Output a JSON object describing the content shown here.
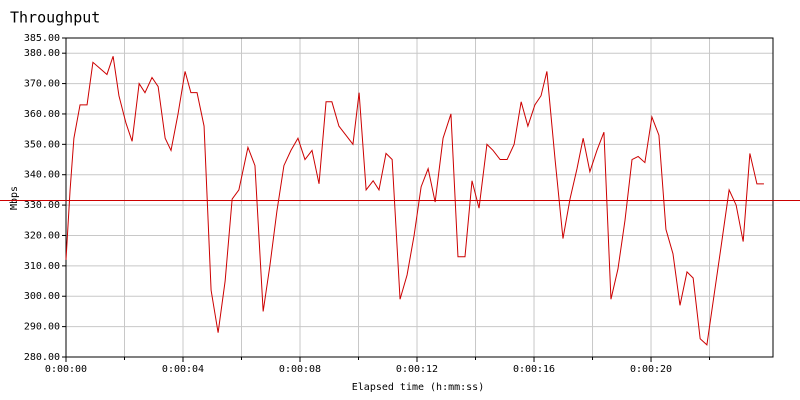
{
  "chart_data": {
    "type": "line",
    "title": "Throughput",
    "xlabel": "Elapsed time (h:mm:ss)",
    "ylabel": "Mbps",
    "x": [
      0,
      0.14,
      0.27,
      0.48,
      0.72,
      0.92,
      1.16,
      1.4,
      1.61,
      1.81,
      2.05,
      2.26,
      2.5,
      2.7,
      2.94,
      3.15,
      3.39,
      3.59,
      3.83,
      4.07,
      4.27,
      4.48,
      4.72,
      4.96,
      5.2,
      5.44,
      5.68,
      5.91,
      6.22,
      6.46,
      6.74,
      6.97,
      7.21,
      7.45,
      7.69,
      7.93,
      8.17,
      8.41,
      8.65,
      8.89,
      9.09,
      9.33,
      9.57,
      9.81,
      10.02,
      10.26,
      10.5,
      10.7,
      10.94,
      11.15,
      11.42,
      11.66,
      11.9,
      12.14,
      12.38,
      12.62,
      12.89,
      13.16,
      13.4,
      13.64,
      13.88,
      14.12,
      14.39,
      14.6,
      14.84,
      15.08,
      15.32,
      15.56,
      15.79,
      16.03,
      16.24,
      16.44,
      16.72,
      16.99,
      17.23,
      17.47,
      17.68,
      17.91,
      18.15,
      18.39,
      18.63,
      18.87,
      19.11,
      19.35,
      19.56,
      19.79,
      20.03,
      20.27,
      20.51,
      20.75,
      20.99,
      21.23,
      21.44,
      21.68,
      21.91,
      22.15,
      22.39,
      22.67,
      22.91,
      23.15,
      23.38,
      23.62,
      23.86
    ],
    "series": [
      {
        "name": "Throughput",
        "color": "#cc0000",
        "values": [
          312,
          335,
          352,
          363,
          363,
          377,
          375,
          373,
          379,
          366,
          357,
          351,
          370,
          367,
          372,
          369,
          352,
          348,
          360,
          374,
          367,
          367,
          356,
          302,
          288,
          305,
          332,
          335,
          349,
          343,
          295,
          310,
          328,
          343,
          348,
          352,
          345,
          348,
          337,
          364,
          364,
          356,
          353,
          350,
          367,
          335,
          338,
          335,
          347,
          345,
          299,
          307,
          320,
          336,
          342,
          331,
          352,
          360,
          313,
          313,
          338,
          329,
          350,
          348,
          345,
          345,
          350,
          364,
          356,
          363,
          366,
          374,
          345,
          319,
          332,
          342,
          352,
          341,
          348,
          354,
          299,
          309,
          325,
          345,
          346,
          344,
          359,
          353,
          322,
          314,
          297,
          308,
          306,
          286,
          284,
          300,
          316,
          335,
          330,
          318,
          347,
          337,
          337
        ]
      }
    ],
    "reference_line": 331.5,
    "reference_color": "#cc0000",
    "xlim": [
      0,
      24.17
    ],
    "xticks": [
      {
        "value": 0,
        "label": "0:00:00"
      },
      {
        "value": 4,
        "label": "0:00:04"
      },
      {
        "value": 8,
        "label": "0:00:08"
      },
      {
        "value": 12,
        "label": "0:00:12"
      },
      {
        "value": 16,
        "label": "0:00:16"
      },
      {
        "value": 20,
        "label": "0:00:20"
      }
    ],
    "x_minor_ticks": [
      2,
      6,
      10,
      14,
      18,
      22
    ],
    "ylim": [
      280,
      385
    ],
    "yticks": [
      {
        "value": 280,
        "label": "280.00"
      },
      {
        "value": 290,
        "label": "290.00"
      },
      {
        "value": 300,
        "label": "300.00"
      },
      {
        "value": 310,
        "label": "310.00"
      },
      {
        "value": 320,
        "label": "320.00"
      },
      {
        "value": 330,
        "label": "330.00"
      },
      {
        "value": 340,
        "label": "340.00"
      },
      {
        "value": 350,
        "label": "350.00"
      },
      {
        "value": 360,
        "label": "360.00"
      },
      {
        "value": 370,
        "label": "370.00"
      },
      {
        "value": 380,
        "label": "380.00"
      },
      {
        "value": 385,
        "label": "385.00"
      }
    ],
    "grid": true
  }
}
